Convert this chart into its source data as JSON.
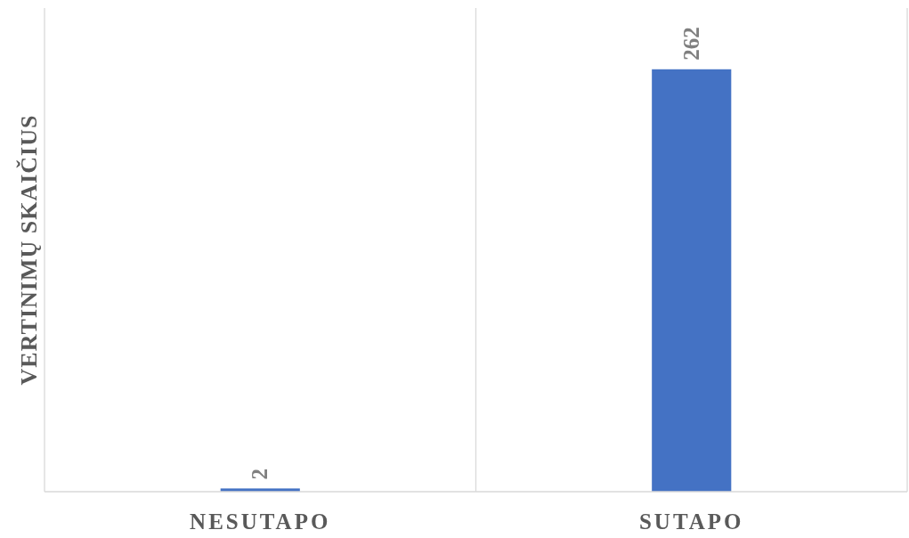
{
  "chart_data": {
    "type": "bar",
    "ylabel": "VERTINIMŲ SKAIČIUS",
    "categories": [
      "NESUTAPO",
      "SUTAPO"
    ],
    "values": [
      2,
      262
    ],
    "color": "#4472c4",
    "ylim": [
      0,
      300
    ],
    "grid": "x",
    "data_labels": true,
    "tick_labels": "x"
  }
}
